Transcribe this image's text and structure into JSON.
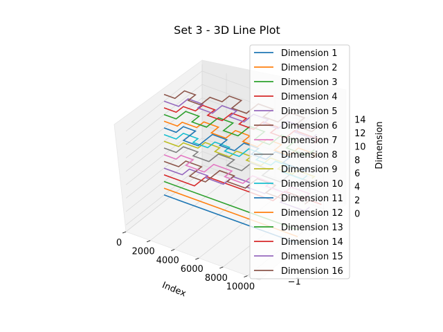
{
  "chart_data": {
    "type": "line",
    "projection": "3d",
    "title": "Set 3 - 3D Line Plot",
    "xlabel": "Index",
    "ylabel": "",
    "zlabel": "Dimension",
    "xlim": [
      0,
      11000
    ],
    "ylim": [
      -1.6,
      1.6
    ],
    "zlim": [
      -1,
      15
    ],
    "x_ticks": [
      "0",
      "2000",
      "4000",
      "6000",
      "8000",
      "10000"
    ],
    "y_ticks": [
      "−1"
    ],
    "z_ticks": [
      "0",
      "2",
      "4",
      "6",
      "8",
      "10",
      "12",
      "14"
    ],
    "grid": true,
    "legend_position": "top-right",
    "series": [
      {
        "name": "Dimension 1",
        "color": "#1f77b4",
        "z": 0,
        "x": [
          0,
          11000
        ],
        "y": [
          0,
          0
        ]
      },
      {
        "name": "Dimension 2",
        "color": "#ff7f0e",
        "z": 1,
        "x": [
          0,
          11000
        ],
        "y": [
          0,
          0
        ]
      },
      {
        "name": "Dimension 3",
        "color": "#2ca02c",
        "z": 2,
        "x": [
          0,
          11000
        ],
        "y": [
          0,
          0
        ]
      },
      {
        "name": "Dimension 4",
        "color": "#d62728",
        "z": 3,
        "x": [
          0,
          1000,
          2500,
          4000,
          6000,
          8000,
          11000
        ],
        "y": [
          0,
          0,
          0.5,
          0.5,
          0.5,
          1,
          1
        ]
      },
      {
        "name": "Dimension 5",
        "color": "#9467bd",
        "z": 4,
        "x": [
          0,
          1500,
          3000,
          4500,
          6000,
          7500,
          9000,
          11000
        ],
        "y": [
          0,
          0.3,
          0.2,
          0.6,
          0.4,
          0.7,
          0.3,
          0.5
        ]
      },
      {
        "name": "Dimension 6",
        "color": "#8c564b",
        "z": 5,
        "x": [
          0,
          1200,
          2500,
          3800,
          5000,
          6500,
          8000,
          9500,
          11000
        ],
        "y": [
          0,
          0.3,
          -0.2,
          0.4,
          0.1,
          0.6,
          0.2,
          0.5,
          0.3
        ]
      },
      {
        "name": "Dimension 7",
        "color": "#e377c2",
        "z": 6,
        "x": [
          0,
          1000,
          2000,
          3500,
          5000,
          6500,
          8000,
          9500,
          11000
        ],
        "y": [
          0,
          0.2,
          -0.1,
          0.3,
          0,
          0.4,
          0.2,
          0.5,
          0.1
        ]
      },
      {
        "name": "Dimension 8",
        "color": "#7f7f7f",
        "z": 7,
        "x": [
          0,
          1000,
          2200,
          3500,
          4800,
          6000,
          7500,
          9000,
          11000
        ],
        "y": [
          0,
          0.3,
          0.1,
          0.5,
          0.2,
          0.6,
          0.3,
          0.7,
          0.4
        ]
      },
      {
        "name": "Dimension 9",
        "color": "#bcbd22",
        "z": 8,
        "x": [
          0,
          1200,
          2400,
          3600,
          4800,
          6000,
          7200,
          8400,
          9600,
          11000
        ],
        "y": [
          0,
          0.2,
          0.5,
          0.3,
          0.6,
          0.4,
          0.8,
          0.5,
          0.7,
          0.6
        ]
      },
      {
        "name": "Dimension 10",
        "color": "#17becf",
        "z": 9,
        "x": [
          0,
          1000,
          2200,
          3400,
          4600,
          5800,
          7000,
          8200,
          9400,
          11000
        ],
        "y": [
          0,
          0.3,
          0.1,
          0.4,
          0.2,
          0.6,
          0.3,
          0.5,
          0.2,
          0.4
        ]
      },
      {
        "name": "Dimension 11",
        "color": "#1f77b4",
        "z": 10,
        "x": [
          0,
          1000,
          2000,
          3200,
          4400,
          5600,
          6800,
          8000,
          9200,
          11000
        ],
        "y": [
          0,
          0.3,
          -0.2,
          0.4,
          0.1,
          0.5,
          0.2,
          0.6,
          0.3,
          0.5
        ]
      },
      {
        "name": "Dimension 12",
        "color": "#ff7f0e",
        "z": 11,
        "x": [
          0,
          1100,
          2300,
          3500,
          4700,
          5900,
          7100,
          8300,
          9500,
          11000
        ],
        "y": [
          0,
          0.2,
          0.5,
          0.2,
          0.6,
          0.3,
          0.7,
          0.4,
          0.8,
          0.6
        ]
      },
      {
        "name": "Dimension 13",
        "color": "#2ca02c",
        "z": 12,
        "x": [
          0,
          1000,
          2100,
          3300,
          4500,
          5700,
          6900,
          8100,
          9300,
          11000
        ],
        "y": [
          0,
          0.4,
          0.1,
          0.6,
          0.2,
          0.7,
          0.3,
          0.8,
          0.4,
          0.7
        ]
      },
      {
        "name": "Dimension 14",
        "color": "#d62728",
        "z": 13,
        "x": [
          0,
          1000,
          2000,
          3000,
          4200,
          5400,
          6600,
          7800,
          9000,
          11000
        ],
        "y": [
          0,
          0.3,
          0.6,
          0.3,
          0.7,
          0.4,
          0.8,
          0.5,
          0.9,
          0.7
        ]
      },
      {
        "name": "Dimension 15",
        "color": "#9467bd",
        "z": 14,
        "x": [
          0,
          1200,
          2400,
          3600,
          4800,
          6000,
          7200,
          8400,
          9600,
          11000
        ],
        "y": [
          0,
          0.4,
          0.2,
          0.6,
          0.3,
          0.7,
          0.5,
          0.9,
          0.6,
          0.8
        ]
      },
      {
        "name": "Dimension 16",
        "color": "#8c564b",
        "z": 15,
        "x": [
          0,
          900,
          1800,
          2800,
          3800,
          4800,
          6000,
          7200,
          8400,
          9600,
          11000
        ],
        "y": [
          0,
          0.4,
          0.1,
          0.5,
          0.8,
          0.4,
          0.9,
          0.5,
          1.0,
          0.6,
          0.9
        ]
      }
    ]
  }
}
